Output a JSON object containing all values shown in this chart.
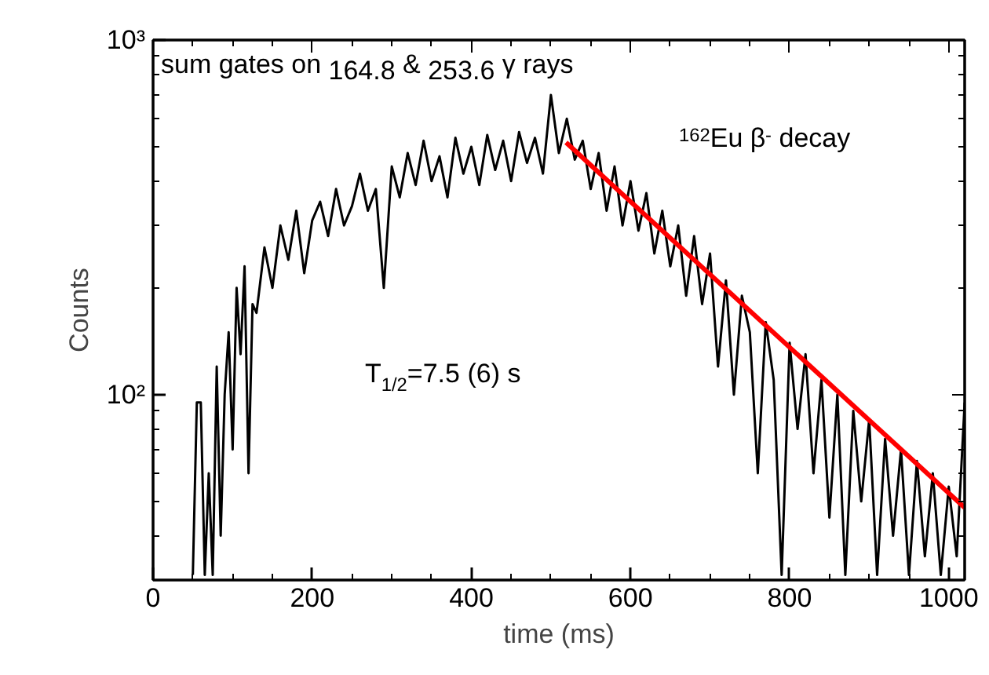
{
  "chart_data": {
    "type": "line",
    "xlabel": "time (ms)",
    "ylabel": "Counts",
    "log": "y",
    "grid": false,
    "marker": "none",
    "line_style": "solid",
    "xlim": [
      0,
      1020
    ],
    "xticks": [
      0,
      200,
      400,
      600,
      800,
      1000
    ],
    "ylim": [
      30,
      1000
    ],
    "yticks": [
      {
        "value": 100,
        "label": "10²"
      },
      {
        "value": 1000,
        "label": "10³"
      }
    ],
    "annotations": [
      "sum gates on 164.8 & 253.6 γ rays",
      "$^{162}$Eu β$^{-}$ decay",
      "T$_{1/2}$=7.5 (6) s"
    ],
    "series": [
      {
        "color": "#000000",
        "x": [
          50,
          55,
          60,
          65,
          70,
          75,
          80,
          85,
          90,
          95,
          100,
          105,
          110,
          115,
          120,
          125,
          130,
          140,
          150,
          160,
          170,
          180,
          190,
          200,
          210,
          220,
          230,
          240,
          250,
          260,
          270,
          280,
          290,
          300,
          310,
          320,
          330,
          340,
          350,
          360,
          370,
          380,
          390,
          400,
          410,
          420,
          430,
          440,
          450,
          460,
          470,
          480,
          490,
          500,
          510,
          520,
          530,
          540,
          550,
          560,
          570,
          580,
          590,
          600,
          610,
          620,
          630,
          640,
          650,
          660,
          670,
          680,
          690,
          700,
          710,
          720,
          730,
          740,
          750,
          760,
          770,
          780,
          790,
          800,
          810,
          820,
          830,
          840,
          850,
          860,
          870,
          880,
          890,
          900,
          910,
          920,
          930,
          940,
          950,
          960,
          970,
          980,
          990,
          1000,
          1010,
          1020
        ],
        "values": [
          31,
          95,
          95,
          31,
          60,
          31,
          120,
          40,
          100,
          150,
          70,
          200,
          130,
          230,
          60,
          180,
          170,
          260,
          200,
          300,
          240,
          330,
          220,
          310,
          350,
          280,
          380,
          300,
          340,
          420,
          330,
          380,
          200,
          440,
          360,
          480,
          390,
          520,
          400,
          470,
          360,
          530,
          420,
          500,
          390,
          540,
          430,
          520,
          400,
          550,
          450,
          530,
          420,
          700,
          480,
          600,
          460,
          520,
          380,
          480,
          330,
          440,
          300,
          400,
          290,
          370,
          250,
          330,
          230,
          300,
          190,
          280,
          180,
          250,
          120,
          210,
          100,
          190,
          150,
          60,
          160,
          110,
          31,
          140,
          80,
          130,
          60,
          110,
          45,
          100,
          31,
          90,
          50,
          85,
          31,
          75,
          40,
          70,
          31,
          65,
          35,
          60,
          31,
          55,
          35,
          95
        ]
      },
      {
        "color": "#ff0000",
        "x": [
          519,
          1020
        ],
        "values": [
          514,
          48
        ]
      }
    ]
  }
}
